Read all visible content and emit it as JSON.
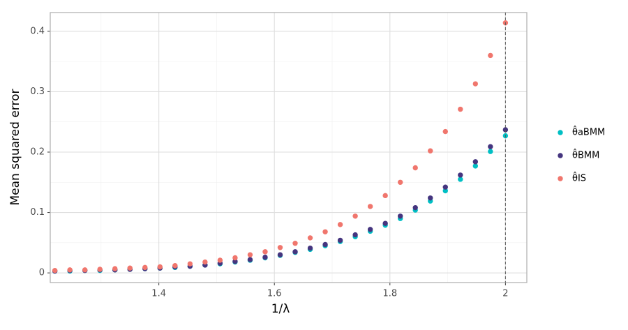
{
  "chart_data": {
    "type": "scatter",
    "x_label": "1/λ",
    "y_label": "Mean squared error",
    "x": [
      1.22,
      1.246,
      1.272,
      1.298,
      1.324,
      1.35,
      1.376,
      1.402,
      1.428,
      1.454,
      1.48,
      1.506,
      1.532,
      1.558,
      1.584,
      1.61,
      1.636,
      1.662,
      1.688,
      1.714,
      1.74,
      1.766,
      1.792,
      1.818,
      1.844,
      1.87,
      1.896,
      1.922,
      1.948,
      1.974,
      2.0
    ],
    "series": [
      {
        "name": "θ̂aBMM",
        "color": "#00bfc4",
        "values": [
          0.003,
          0.003,
          0.004,
          0.004,
          0.005,
          0.006,
          0.007,
          0.008,
          0.009,
          0.011,
          0.013,
          0.015,
          0.018,
          0.021,
          0.025,
          0.029,
          0.034,
          0.039,
          0.045,
          0.052,
          0.06,
          0.069,
          0.079,
          0.09,
          0.104,
          0.119,
          0.136,
          0.155,
          0.177,
          0.201,
          0.227
        ]
      },
      {
        "name": "θ̂BMM",
        "color": "#45357f",
        "values": [
          0.003,
          0.004,
          0.004,
          0.005,
          0.005,
          0.006,
          0.007,
          0.008,
          0.01,
          0.011,
          0.013,
          0.016,
          0.019,
          0.022,
          0.026,
          0.03,
          0.035,
          0.041,
          0.047,
          0.054,
          0.063,
          0.072,
          0.082,
          0.094,
          0.108,
          0.124,
          0.142,
          0.162,
          0.184,
          0.209,
          0.237
        ]
      },
      {
        "name": "θ̂IS",
        "color": "#f0766d",
        "values": [
          0.004,
          0.005,
          0.005,
          0.006,
          0.007,
          0.008,
          0.009,
          0.01,
          0.012,
          0.015,
          0.018,
          0.021,
          0.025,
          0.03,
          0.035,
          0.042,
          0.049,
          0.058,
          0.068,
          0.08,
          0.094,
          0.11,
          0.128,
          0.15,
          0.174,
          0.202,
          0.234,
          0.271,
          0.313,
          0.36,
          0.414
        ]
      }
    ],
    "xlim": [
      1.212,
      2.037
    ],
    "ylim": [
      -0.016,
      0.431
    ],
    "xticks": [
      1.4,
      1.6,
      1.8,
      2
    ],
    "yticks": [
      0,
      0.1,
      0.2,
      0.3,
      0.4
    ],
    "x_minor_grid": [
      1.3,
      1.5,
      1.7,
      1.9
    ],
    "y_minor_grid": [
      0.05,
      0.15,
      0.25,
      0.35
    ],
    "vline": 2,
    "grid": true,
    "legend": "right"
  }
}
